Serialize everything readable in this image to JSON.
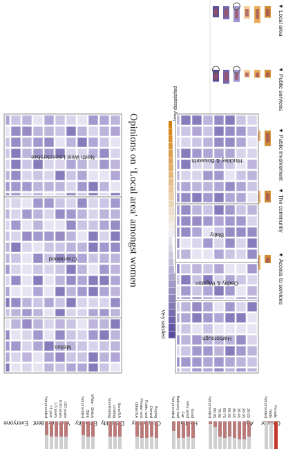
{
  "chart_data": {
    "type": "treemap",
    "title": "Opinions on ‘Local area’ amongst women",
    "legend": {
      "low_label": "Very dissatisfied",
      "high_label": "Very satisfied",
      "colors": {
        "dissatisfied": "#d4800e",
        "neutral": "#f2f2f2",
        "satisfied": "#5a4a9e"
      }
    },
    "colors": {
      "highlight": "#c0392b",
      "bar_selected": "#b97a7a",
      "bar_unselected": "#cfcfcf"
    },
    "questions": {
      "sections": [
        {
          "label": "▼ Local area",
          "highlight": true
        },
        {
          "label": "▼ Public services",
          "highlight": false
        },
        {
          "label": "▼ Public involvement",
          "highlight": false
        },
        {
          "label": "▼ The community",
          "highlight": false
        },
        {
          "label": "▼ Access to services",
          "highlight": false
        }
      ]
    },
    "regions": [
      {
        "name": "North West Leicestershire"
      },
      {
        "name": "Charnwood"
      },
      {
        "name": "Melton"
      },
      {
        "name": "Hinckley & Bosworth"
      },
      {
        "name": "Blaby"
      },
      {
        "name": "Oadby & Wigston"
      },
      {
        "name": "Harborough"
      }
    ],
    "filters": [
      {
        "title": "Gender",
        "items": [
          {
            "label": "Female",
            "value": 1.0,
            "highlight": true
          },
          {
            "label": "Male",
            "value": 0.05,
            "highlight": false
          },
          {
            "label": "Not provided",
            "value": 0.02,
            "highlight": false
          }
        ]
      },
      {
        "title": "Age",
        "items": [
          {
            "label": "16-25",
            "value": 0.55
          },
          {
            "label": "26-35",
            "value": 0.65
          },
          {
            "label": "36-45",
            "value": 0.65
          },
          {
            "label": "46-55",
            "value": 0.6
          },
          {
            "label": "56-65",
            "value": 0.55
          },
          {
            "label": "66-75",
            "value": 0.6
          },
          {
            "label": "76-85",
            "value": 0.55
          },
          {
            "label": "86-95",
            "value": 0.2
          },
          {
            "label": "Not provided",
            "value": 0.1
          }
        ]
      },
      {
        "title": "Health",
        "items": [
          {
            "label": "Good",
            "value": 0.6
          },
          {
            "label": "Very good",
            "value": 0.55
          },
          {
            "label": "Fair",
            "value": 0.6
          },
          {
            "label": "Bad/very bad",
            "value": 0.6
          },
          {
            "label": "Not provided",
            "value": 0.35
          }
        ]
      },
      {
        "title": "Occupancy",
        "items": [
          {
            "label": "Buying",
            "value": 0.6
          },
          {
            "label": "Owned",
            "value": 0.55
          },
          {
            "label": "Public rent",
            "value": 0.6
          },
          {
            "label": "Private rent",
            "value": 0.6
          },
          {
            "label": "Other/NA",
            "value": 0.55
          }
        ]
      },
      {
        "title": "Disability",
        "items": [
          {
            "label": "None/NA",
            "value": 0.55
          },
          {
            "label": "Limiting",
            "value": 0.55
          },
          {
            "label": "Non-limiting",
            "value": 0.55
          }
        ]
      },
      {
        "title": "Ethnicity",
        "items": [
          {
            "label": "White - British",
            "value": 0.55
          },
          {
            "label": "BME",
            "value": 0.55
          },
          {
            "label": "Not provided",
            "value": 0.5
          }
        ]
      },
      {
        "title": "Years resident",
        "items": [
          {
            "label": ">20 years",
            "value": 0.55
          },
          {
            "label": "6-20 years",
            "value": 0.55
          },
          {
            "label": "1-5 years",
            "value": 0.55
          },
          {
            "label": "<1 year",
            "value": 0.55
          },
          {
            "label": "Not provided",
            "value": 0.5
          }
        ]
      },
      {
        "title": "Everyone",
        "items": []
      }
    ]
  }
}
